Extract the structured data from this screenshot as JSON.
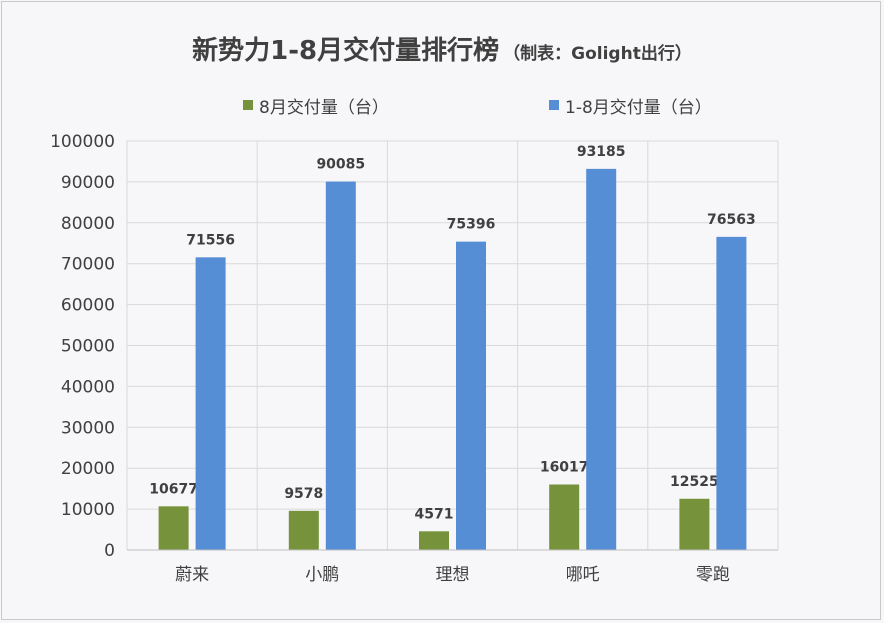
{
  "chart_data": {
    "type": "bar",
    "title": "新势力1-8月交付量排行榜",
    "subtitle": "（制表：Golight出行）",
    "categories": [
      "蔚来",
      "小鹏",
      "理想",
      "哪吒",
      "零跑"
    ],
    "series": [
      {
        "name": "8月交付量（台）",
        "values": [
          10677,
          9578,
          4571,
          16017,
          12525
        ],
        "color": "#76933c"
      },
      {
        "name": "1-8月交付量（台）",
        "values": [
          71556,
          90085,
          75396,
          93185,
          76563
        ],
        "color": "#558ed5"
      }
    ],
    "ylim": [
      0,
      100000
    ],
    "yticks": [
      "0",
      "10000",
      "20000",
      "30000",
      "40000",
      "50000",
      "60000",
      "70000",
      "80000",
      "90000",
      "100000"
    ],
    "grid": true,
    "legend_position": "top"
  }
}
